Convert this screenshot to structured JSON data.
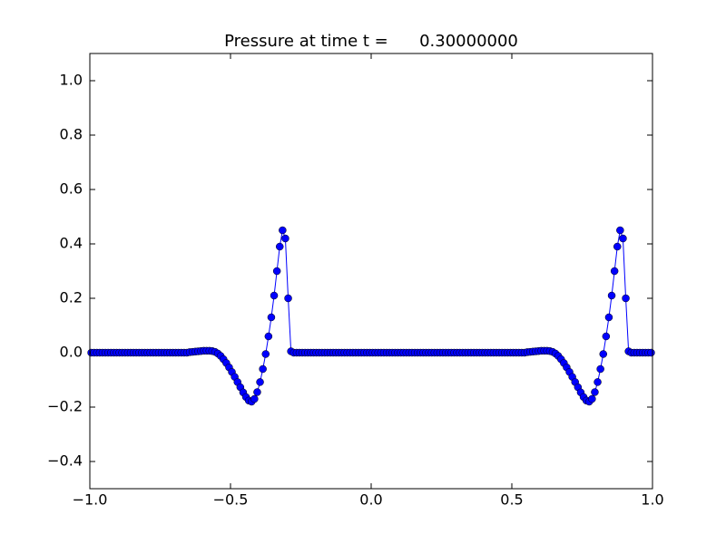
{
  "chart_data": {
    "type": "line",
    "title": "Pressure at time t =      0.30000000",
    "color": "#0000ff",
    "x": [
      -0.995,
      -0.985,
      -0.975,
      -0.965,
      -0.955,
      -0.945,
      -0.935,
      -0.925,
      -0.915,
      -0.905,
      -0.895,
      -0.885,
      -0.875,
      -0.865,
      -0.855,
      -0.845,
      -0.835,
      -0.825,
      -0.815,
      -0.805,
      -0.795,
      -0.785,
      -0.775,
      -0.765,
      -0.755,
      -0.745,
      -0.735,
      -0.725,
      -0.715,
      -0.705,
      -0.695,
      -0.685,
      -0.675,
      -0.665,
      -0.655,
      -0.645,
      -0.635,
      -0.625,
      -0.615,
      -0.605,
      -0.595,
      -0.585,
      -0.575,
      -0.565,
      -0.555,
      -0.545,
      -0.535,
      -0.525,
      -0.515,
      -0.505,
      -0.495,
      -0.485,
      -0.475,
      -0.465,
      -0.455,
      -0.445,
      -0.435,
      -0.425,
      -0.415,
      -0.405,
      -0.395,
      -0.385,
      -0.375,
      -0.365,
      -0.355,
      -0.345,
      -0.335,
      -0.325,
      -0.315,
      -0.305,
      -0.295,
      -0.285,
      -0.275,
      -0.265,
      -0.255,
      -0.245,
      -0.235,
      -0.225,
      -0.215,
      -0.205,
      -0.195,
      -0.185,
      -0.175,
      -0.165,
      -0.155,
      -0.145,
      -0.135,
      -0.125,
      -0.115,
      -0.105,
      -0.095,
      -0.085,
      -0.075,
      -0.065,
      -0.055,
      -0.045,
      -0.035,
      -0.025,
      -0.015,
      -0.005,
      0.005,
      0.015,
      0.025,
      0.035,
      0.045,
      0.055,
      0.065,
      0.075,
      0.085,
      0.095,
      0.105,
      0.115,
      0.125,
      0.135,
      0.145,
      0.155,
      0.165,
      0.175,
      0.185,
      0.195,
      0.205,
      0.215,
      0.225,
      0.235,
      0.245,
      0.255,
      0.265,
      0.275,
      0.285,
      0.295,
      0.305,
      0.315,
      0.325,
      0.335,
      0.345,
      0.355,
      0.365,
      0.375,
      0.385,
      0.395,
      0.405,
      0.415,
      0.425,
      0.435,
      0.445,
      0.455,
      0.465,
      0.475,
      0.485,
      0.495,
      0.505,
      0.515,
      0.525,
      0.535,
      0.545,
      0.555,
      0.565,
      0.575,
      0.585,
      0.595,
      0.605,
      0.615,
      0.625,
      0.635,
      0.645,
      0.655,
      0.665,
      0.675,
      0.685,
      0.695,
      0.705,
      0.715,
      0.725,
      0.735,
      0.745,
      0.755,
      0.765,
      0.775,
      0.785,
      0.795,
      0.805,
      0.815,
      0.825,
      0.835,
      0.845,
      0.855,
      0.865,
      0.875,
      0.885,
      0.895,
      0.905,
      0.915,
      0.925,
      0.935,
      0.945,
      0.955,
      0.965,
      0.975,
      0.985,
      0.995
    ],
    "values": [
      0,
      0,
      0,
      0,
      0,
      0,
      0,
      0,
      0,
      0,
      0,
      0,
      0,
      0,
      0,
      0,
      0,
      0,
      0,
      0,
      0,
      0,
      0,
      0,
      0,
      0,
      0,
      0,
      0,
      0,
      0,
      0,
      0,
      0,
      0,
      0.002,
      0.003,
      0.004,
      0.005,
      0.006,
      0.007,
      0.007,
      0.007,
      0.006,
      0.003,
      -0.003,
      -0.012,
      -0.024,
      -0.038,
      -0.054,
      -0.071,
      -0.089,
      -0.108,
      -0.127,
      -0.146,
      -0.163,
      -0.176,
      -0.18,
      -0.17,
      -0.145,
      -0.108,
      -0.06,
      -0.005,
      0.06,
      0.13,
      0.21,
      0.3,
      0.39,
      0.45,
      0.42,
      0.2,
      0.005,
      0,
      0,
      0,
      0,
      0,
      0,
      0,
      0,
      0,
      0,
      0,
      0,
      0,
      0,
      0,
      0,
      0,
      0,
      0,
      0,
      0,
      0,
      0,
      0,
      0,
      0,
      0,
      0,
      0,
      0,
      0,
      0,
      0,
      0,
      0,
      0,
      0,
      0,
      0,
      0,
      0,
      0,
      0,
      0,
      0,
      0,
      0,
      0,
      0,
      0,
      0,
      0,
      0,
      0,
      0,
      0,
      0,
      0,
      0,
      0,
      0,
      0,
      0,
      0,
      0,
      0,
      0,
      0,
      0,
      0,
      0,
      0,
      0,
      0,
      0,
      0,
      0,
      0,
      0,
      0,
      0,
      0,
      0,
      0.002,
      0.003,
      0.004,
      0.005,
      0.006,
      0.007,
      0.007,
      0.007,
      0.006,
      0.003,
      -0.003,
      -0.012,
      -0.024,
      -0.038,
      -0.054,
      -0.071,
      -0.089,
      -0.108,
      -0.127,
      -0.146,
      -0.163,
      -0.176,
      -0.18,
      -0.17,
      -0.145,
      -0.108,
      -0.06,
      -0.005,
      0.06,
      0.13,
      0.21,
      0.3,
      0.39,
      0.45,
      0.42,
      0.2,
      0.005,
      0,
      0,
      0,
      0,
      0,
      0,
      0,
      0
    ],
    "xlim": [
      -1,
      1
    ],
    "ylim": [
      -0.5,
      1.1
    ],
    "xticks": [
      {
        "value": -1,
        "label": "−1.0"
      },
      {
        "value": -0.5,
        "label": "−0.5"
      },
      {
        "value": 0,
        "label": "0.0"
      },
      {
        "value": 0.5,
        "label": "0.5"
      },
      {
        "value": 1,
        "label": "1.0"
      }
    ],
    "yticks": [
      {
        "value": -0.4,
        "label": "−0.4"
      },
      {
        "value": -0.2,
        "label": "−0.2"
      },
      {
        "value": 0,
        "label": "0.0"
      },
      0.2,
      0.4,
      0.6,
      0.8,
      {
        "value": 1,
        "label": "1.0"
      }
    ],
    "grid": false
  }
}
